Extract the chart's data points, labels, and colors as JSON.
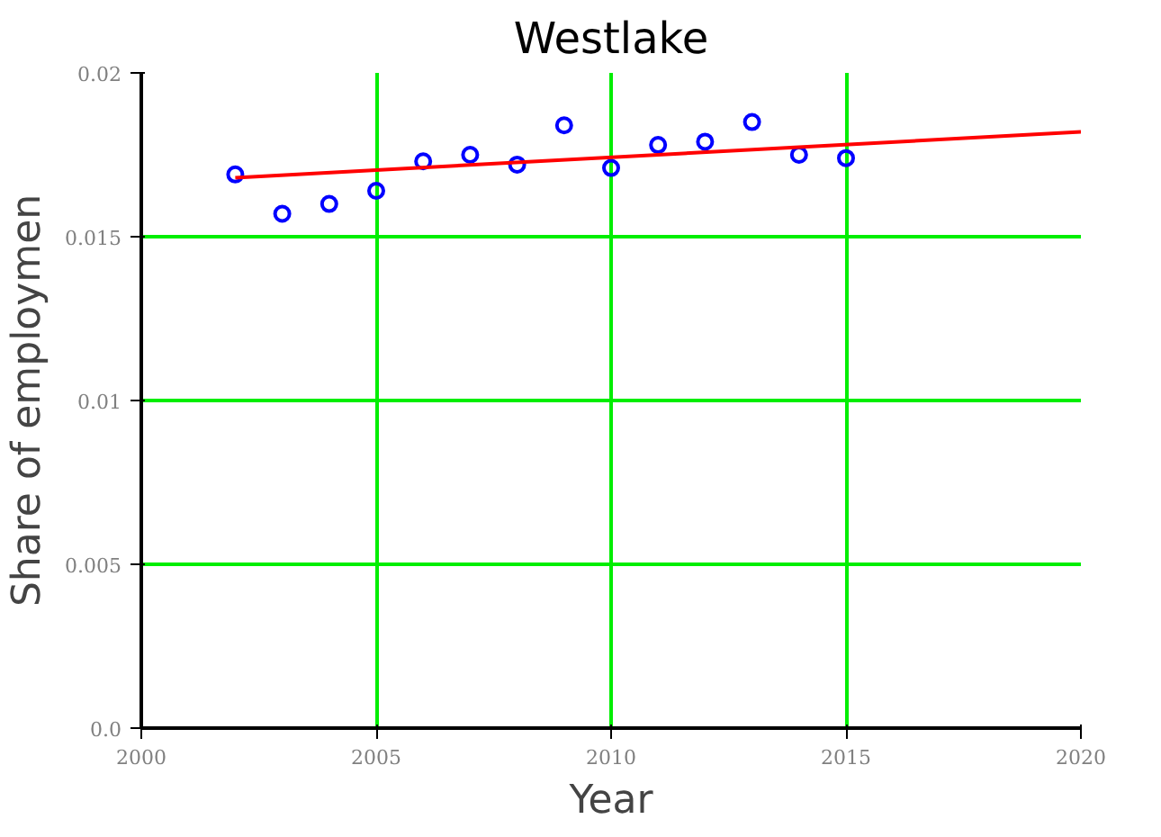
{
  "chart_data": {
    "type": "scatter",
    "title": "Westlake",
    "xlabel": "Year",
    "ylabel": "Share of employmen",
    "x": [
      2002,
      2003,
      2004,
      2005,
      2006,
      2007,
      2008,
      2009,
      2010,
      2011,
      2012,
      2013,
      2014,
      2015
    ],
    "series": [
      {
        "color": "#0000ff",
        "values": [
          0.0169,
          0.0157,
          0.016,
          0.0164,
          0.0173,
          0.0175,
          0.0172,
          0.0184,
          0.0171,
          0.0178,
          0.0179,
          0.0185,
          0.0175,
          0.0174
        ]
      },
      {
        "type": "line",
        "marker": "none",
        "color": "#ff0000",
        "x": [
          2002,
          2020
        ],
        "values": [
          0.0168,
          0.0182
        ]
      }
    ],
    "xlim": [
      2000,
      2020
    ],
    "ylim": [
      0,
      0.02
    ],
    "xticks": [
      2000,
      2005,
      2010,
      2015,
      2020
    ],
    "yticks": [
      {
        "value": 0,
        "label": "0.0"
      },
      0.005,
      0.01,
      0.015,
      0.02
    ],
    "grid": true,
    "marker": "circle",
    "line_style": "solid"
  }
}
